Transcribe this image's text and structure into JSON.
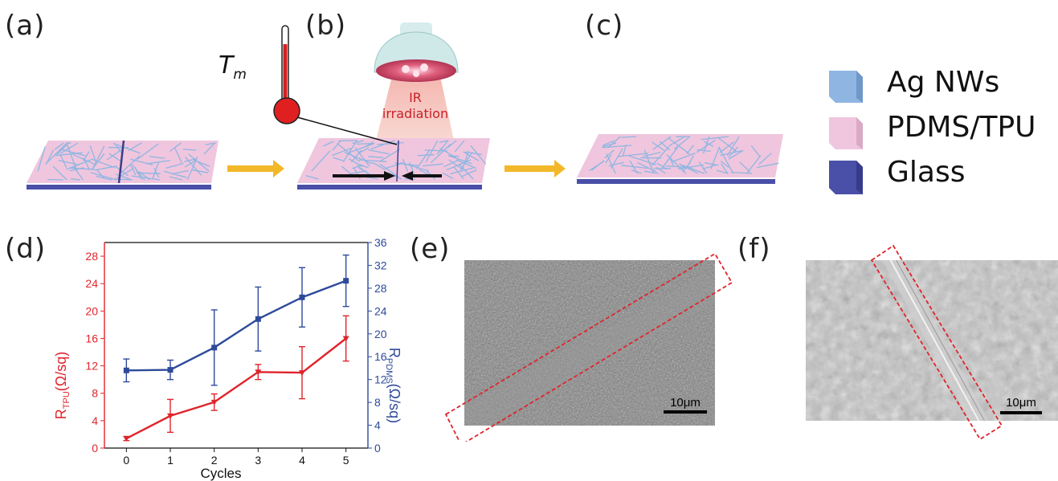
{
  "panels": {
    "a": "(a)",
    "b": "(b)",
    "c": "(c)",
    "d": "(d)",
    "e": "(e)",
    "f": "(f)"
  },
  "schematic": {
    "temperature_label": "T",
    "temperature_sub": "m",
    "ir_line1": "IR",
    "ir_line2": "irradiation"
  },
  "legend": {
    "items": [
      {
        "label": "Ag NWs",
        "color": "#8fb6e2"
      },
      {
        "label": "PDMS/TPU",
        "color": "#efc6de"
      },
      {
        "label": "Glass",
        "color": "#4a4fa8"
      }
    ]
  },
  "sem": {
    "e_scale": "10μm",
    "f_scale": "10μm"
  },
  "colors": {
    "tpu": "#e0242b",
    "pdms": "#2e4a9a",
    "arrow": "#f2b829",
    "highlight": "#e0242b"
  },
  "chart_data": {
    "type": "line",
    "xlabel": "Cycles",
    "ylabel_left": "R_TPU(Ω/sq)",
    "ylabel_left_main": "R",
    "ylabel_left_sub": "TPU",
    "ylabel_left_unit": "(Ω/sq)",
    "ylabel_right_main": "R",
    "ylabel_right_sub": "PDMS",
    "ylabel_right_unit": "(Ω/sq)",
    "x": [
      0,
      1,
      2,
      3,
      4,
      5
    ],
    "xlim": [
      -0.5,
      5.5
    ],
    "ylim_left": [
      0,
      30
    ],
    "ylim_right": [
      0,
      36
    ],
    "yticks_left": [
      0,
      4,
      8,
      12,
      16,
      20,
      24,
      28
    ],
    "yticks_right": [
      0,
      4,
      8,
      12,
      16,
      20,
      24,
      28,
      32,
      36
    ],
    "xticks": [
      0,
      1,
      2,
      3,
      4,
      5
    ],
    "series": [
      {
        "name": "R_TPU",
        "axis": "left",
        "values": [
          1.4,
          4.7,
          6.7,
          11.1,
          11.0,
          16.0
        ],
        "err": [
          0.3,
          2.4,
          1.2,
          1.1,
          3.8,
          3.3
        ]
      },
      {
        "name": "R_PDMS",
        "axis": "right",
        "values": [
          13.6,
          13.7,
          17.6,
          22.6,
          26.4,
          29.3
        ],
        "err": [
          2.0,
          1.7,
          6.6,
          5.6,
          5.2,
          4.5
        ]
      }
    ]
  }
}
